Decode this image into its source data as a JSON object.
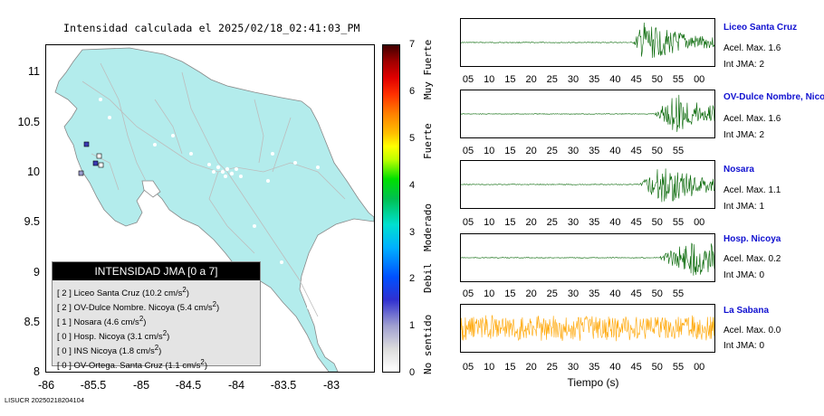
{
  "map": {
    "title": "Intensidad calculada el 2025/02/18_02:41:03_PM",
    "y_ticks": [
      "11",
      "10.5",
      "10",
      "9.5",
      "9",
      "8.5",
      "8"
    ],
    "x_ticks": [
      "-86",
      "-85.5",
      "-85",
      "-84.5",
      "-84",
      "-83.5",
      "-83"
    ],
    "land_color": "#b3ecec"
  },
  "legend": {
    "title": "INTENSIDAD JMA [0 a 7]",
    "rows": [
      {
        "jma": "[ 2 ]",
        "name": "Liceo Santa Cruz",
        "value": "(10.2 cm/s",
        "unit_exp": "2",
        ")": ")"
      },
      {
        "jma": "[ 2 ]",
        "name": "OV-Dulce Nombre. Nicoya",
        "value": "(5.4 cm/s",
        "unit_exp": "2",
        ")": ")"
      },
      {
        "jma": "[ 1 ]",
        "name": "Nosara",
        "value": "(4.6 cm/s",
        "unit_exp": "2",
        ")": ")"
      },
      {
        "jma": "[ 0 ]",
        "name": "Hosp. Nicoya",
        "value": "(3.1 cm/s",
        "unit_exp": "2",
        ")": ")"
      },
      {
        "jma": "[ 0 ]",
        "name": "INS Nicoya",
        "value": "(1.8 cm/s",
        "unit_exp": "2",
        ")": ")"
      },
      {
        "jma": "[ 0 ]",
        "name": "OV-Ortega. Santa Cruz",
        "value": "(1.1 cm/s",
        "unit_exp": "2",
        ")": ")"
      }
    ]
  },
  "colorbar": {
    "ticks": [
      "7",
      "6",
      "5",
      "4",
      "3",
      "2",
      "1",
      "0"
    ],
    "words": [
      "Muy Fuerte",
      "Fuerte",
      "Moderado",
      "Debil",
      "No sentido"
    ]
  },
  "traces": {
    "time_ticks_a": [
      "05",
      "10",
      "15",
      "20",
      "25",
      "30",
      "35",
      "40",
      "45",
      "50",
      "55",
      "00"
    ],
    "time_ticks_b": [
      "05",
      "10",
      "15",
      "20",
      "25",
      "30",
      "35",
      "40",
      "45",
      "50",
      "55"
    ],
    "x_label": "Tiempo (s)",
    "stations": [
      {
        "name": "Liceo Santa Cruz",
        "acel": "Acel. Max. 1.6",
        "int": "Int JMA: 2",
        "color": "#006400"
      },
      {
        "name": "OV-Dulce Nombre, Nicoya",
        "acel": "Acel. Max. 1.6",
        "int": "Int JMA: 2",
        "color": "#006400"
      },
      {
        "name": "Nosara",
        "acel": "Acel. Max. 1.1",
        "int": "Int JMA: 1",
        "color": "#006400"
      },
      {
        "name": "Hosp. Nicoya",
        "acel": "Acel. Max. 0.2",
        "int": "Int JMA: 0",
        "color": "#006400"
      },
      {
        "name": "La Sabana",
        "acel": "Acel. Max. 0.0",
        "int": "Int JMA: 0",
        "color": "#ffa500"
      }
    ]
  },
  "footer": "LISUCR 20250218204104"
}
